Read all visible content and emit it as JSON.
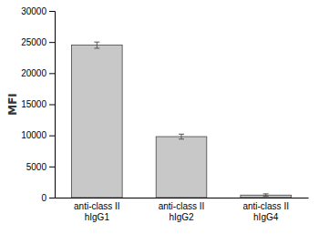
{
  "chart_data": {
    "type": "bar",
    "categories": [
      "anti-class II\nhIgG1",
      "anti-class II\nhIgG2",
      "anti-class II\nhIgG4"
    ],
    "values": [
      24500,
      9800,
      400
    ],
    "errors": [
      500,
      400,
      200
    ],
    "color": "#C8C8C8",
    "ylabel": "MFI",
    "ylim": [
      0,
      30000
    ],
    "yticks": [
      0,
      5000,
      10000,
      15000,
      20000,
      25000,
      30000
    ],
    "grid": false
  }
}
